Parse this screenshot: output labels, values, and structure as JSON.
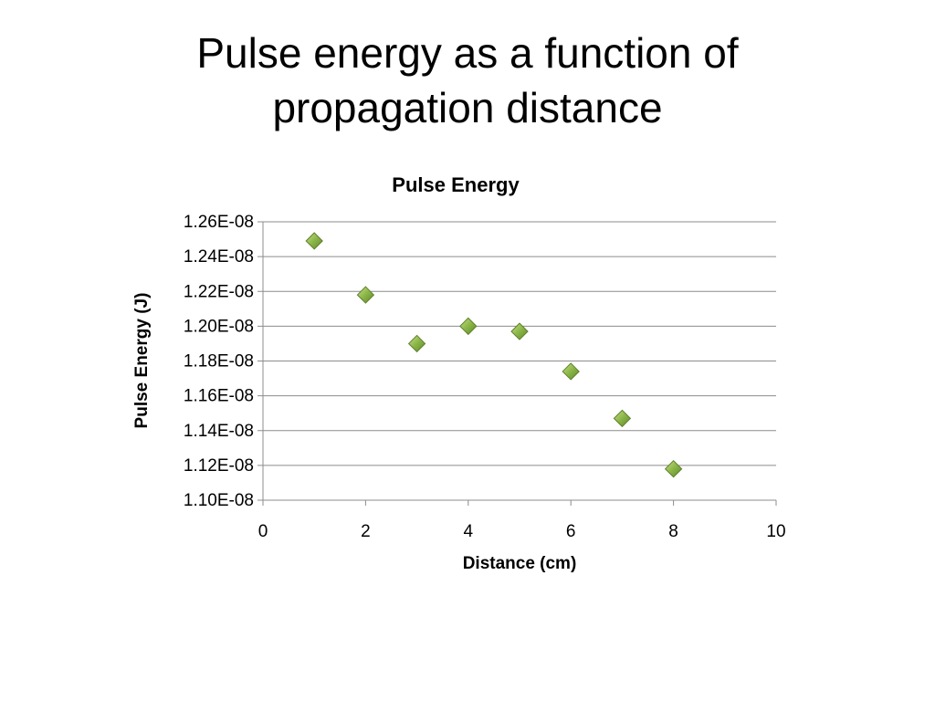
{
  "slide": {
    "title_lines": [
      "Pulse energy as a function of",
      "propagation distance"
    ]
  },
  "chart_data": {
    "type": "scatter",
    "title": "Pulse Energy",
    "xlabel": "Distance (cm)",
    "ylabel": "Pulse Energy (J)",
    "xlim": [
      0,
      10
    ],
    "ylim": [
      1.1e-08,
      1.26e-08
    ],
    "x_ticks": [
      0,
      2,
      4,
      6,
      8,
      10
    ],
    "x_tick_labels": [
      "0",
      "2",
      "4",
      "6",
      "8",
      "10"
    ],
    "y_ticks": [
      1.1e-08,
      1.12e-08,
      1.14e-08,
      1.16e-08,
      1.18e-08,
      1.2e-08,
      1.22e-08,
      1.24e-08,
      1.26e-08
    ],
    "y_tick_labels": [
      "1.10E-08",
      "1.12E-08",
      "1.14E-08",
      "1.16E-08",
      "1.18E-08",
      "1.20E-08",
      "1.22E-08",
      "1.24E-08",
      "1.26E-08"
    ],
    "grid": "horizontal",
    "legend": "none",
    "marker": "diamond",
    "marker_color": "#8ab547",
    "marker_edge_color": "#5f7f2b",
    "series": [
      {
        "x": [
          1,
          2,
          3,
          4,
          5,
          6,
          7,
          8
        ],
        "y": [
          1.249e-08,
          1.218e-08,
          1.19e-08,
          1.2e-08,
          1.197e-08,
          1.174e-08,
          1.147e-08,
          1.118e-08
        ]
      }
    ]
  }
}
